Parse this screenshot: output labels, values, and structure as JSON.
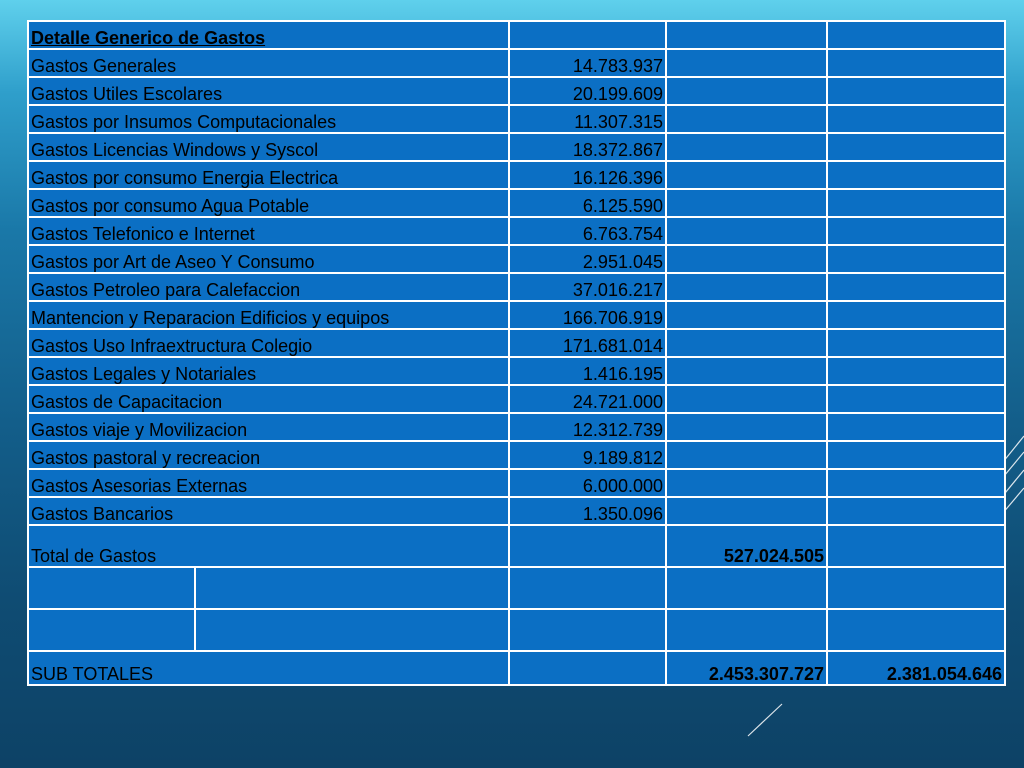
{
  "table": {
    "heading": "Detalle Generico de Gastos",
    "rows": [
      {
        "label": "Gastos Generales",
        "amount": "14.783.937"
      },
      {
        "label": "Gastos Utiles Escolares",
        "amount": "20.199.609"
      },
      {
        "label": "Gastos por Insumos Computacionales",
        "amount": "11.307.315"
      },
      {
        "label": "Gastos Licencias Windows y Syscol",
        "amount": "18.372.867"
      },
      {
        "label": "Gastos por consumo Energia Electrica",
        "amount": "16.126.396"
      },
      {
        "label": "Gastos por consumo Agua Potable",
        "amount": "6.125.590"
      },
      {
        "label": "Gastos Telefonico e Internet",
        "amount": "6.763.754"
      },
      {
        "label": "Gastos por Art de Aseo Y Consumo",
        "amount": "2.951.045"
      },
      {
        "label": "Gastos Petroleo para Calefaccion",
        "amount": "37.016.217"
      },
      {
        "label": "Mantencion y Reparacion Edificios y equipos",
        "amount": "166.706.919"
      },
      {
        "label": "Gastos Uso Infraextructura Colegio",
        "amount": "171.681.014"
      },
      {
        "label": "Gastos Legales y Notariales",
        "amount": "1.416.195"
      },
      {
        "label": "Gastos de Capacitacion",
        "amount": "24.721.000"
      },
      {
        "label": "Gastos viaje y Movilizacion",
        "amount": "12.312.739"
      },
      {
        "label": "Gastos pastoral y recreacion",
        "amount": "9.189.812"
      },
      {
        "label": "Gastos Asesorias Externas",
        "amount": "6.000.000"
      },
      {
        "label": "Gastos Bancarios",
        "amount": "1.350.096"
      }
    ],
    "total": {
      "label": "Total de Gastos",
      "amount": "527.024.505"
    },
    "subtotal": {
      "label": "SUB TOTALES",
      "value1": "2.453.307.727",
      "value2": "2.381.054.646"
    }
  },
  "colors": {
    "cell_background": "#0b6fc4",
    "grid_lines": "#ffffff",
    "slide_top": "#5fd0ec",
    "slide_bottom": "#0d4266"
  }
}
